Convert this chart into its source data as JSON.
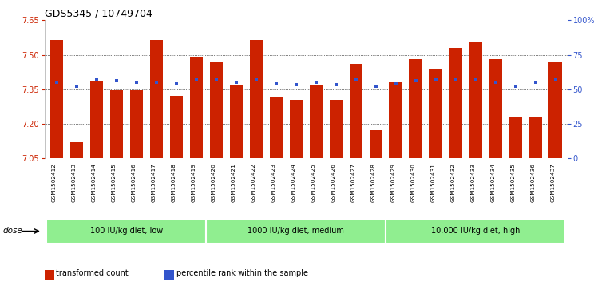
{
  "title": "GDS5345 / 10749704",
  "samples": [
    "GSM1502412",
    "GSM1502413",
    "GSM1502414",
    "GSM1502415",
    "GSM1502416",
    "GSM1502417",
    "GSM1502418",
    "GSM1502419",
    "GSM1502420",
    "GSM1502421",
    "GSM1502422",
    "GSM1502423",
    "GSM1502424",
    "GSM1502425",
    "GSM1502426",
    "GSM1502427",
    "GSM1502428",
    "GSM1502429",
    "GSM1502430",
    "GSM1502431",
    "GSM1502432",
    "GSM1502433",
    "GSM1502434",
    "GSM1502435",
    "GSM1502436",
    "GSM1502437"
  ],
  "bar_values": [
    7.565,
    7.12,
    7.385,
    7.345,
    7.345,
    7.565,
    7.32,
    7.49,
    7.47,
    7.37,
    7.565,
    7.315,
    7.305,
    7.37,
    7.305,
    7.46,
    7.17,
    7.38,
    7.48,
    7.44,
    7.53,
    7.555,
    7.48,
    7.23,
    7.23,
    7.47
  ],
  "percentile_values": [
    55,
    52,
    57,
    56,
    55,
    55,
    54,
    57,
    57,
    55,
    57,
    54,
    53,
    55,
    53,
    57,
    52,
    54,
    56,
    57,
    57,
    57,
    55,
    52,
    55,
    57
  ],
  "groups": [
    {
      "label": "100 IU/kg diet, low",
      "start": 0,
      "end": 8
    },
    {
      "label": "1000 IU/kg diet, medium",
      "start": 8,
      "end": 17
    },
    {
      "label": "10,000 IU/kg diet, high",
      "start": 17,
      "end": 26
    }
  ],
  "ylim_left": [
    7.05,
    7.65
  ],
  "ylim_right": [
    0,
    100
  ],
  "yticks_left": [
    7.05,
    7.2,
    7.35,
    7.5,
    7.65
  ],
  "yticks_right": [
    0,
    25,
    50,
    75,
    100
  ],
  "ytick_labels_right": [
    "0",
    "25",
    "50",
    "75",
    "100%"
  ],
  "bar_color": "#CC2200",
  "percentile_color": "#3355CC",
  "grid_color": "#000000",
  "bg_color": "#FFFFFF",
  "plot_bg_color": "#FFFFFF",
  "xtick_bg_color": "#DDDDDD",
  "group_bg_color": "#90EE90",
  "group_border_color": "#FFFFFF",
  "dose_label": "dose",
  "legend_items": [
    {
      "label": "transformed count",
      "color": "#CC2200"
    },
    {
      "label": "percentile rank within the sample",
      "color": "#3355CC"
    }
  ],
  "title_fontsize": 9,
  "axis_fontsize": 7,
  "label_fontsize": 6,
  "group_fontsize": 7,
  "legend_fontsize": 7
}
